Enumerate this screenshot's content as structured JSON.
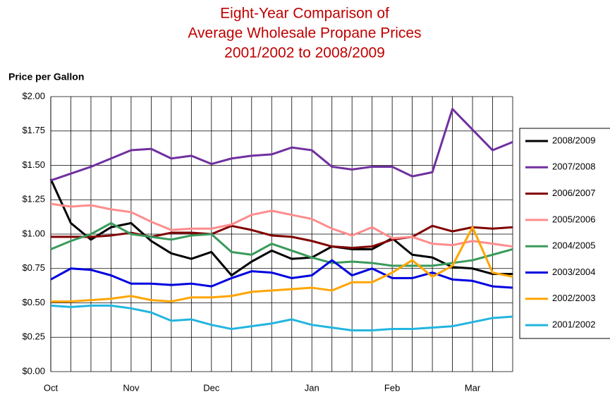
{
  "chart_data": {
    "type": "line",
    "title": [
      "Eight-Year Comparison of",
      "Average Wholesale Propane Prices",
      "2001/2002 to 2008/2009"
    ],
    "y_label": "Price per Gallon",
    "categories": [
      "Oct",
      null,
      null,
      null,
      "Nov",
      null,
      null,
      null,
      "Dec",
      null,
      null,
      null,
      null,
      "Jan",
      null,
      null,
      null,
      "Feb",
      null,
      null,
      null,
      "Mar",
      null,
      null
    ],
    "ylim": [
      0,
      2
    ],
    "yticks": [
      {
        "value": 0,
        "label": "$0.00"
      },
      {
        "value": 0.25,
        "label": "$0.25"
      },
      {
        "value": 0.5,
        "label": "$0.50"
      },
      {
        "value": 0.75,
        "label": "$0.75"
      },
      {
        "value": 1,
        "label": "$1.00"
      },
      {
        "value": 1.25,
        "label": "$1.25"
      },
      {
        "value": 1.5,
        "label": "$1.50"
      },
      {
        "value": 1.75,
        "label": "$1.75"
      },
      {
        "value": 2,
        "label": "$2.00"
      }
    ],
    "grid": true,
    "legend": "right",
    "series": [
      {
        "name": "2008/2009",
        "color": "#000000",
        "values": [
          1.4,
          1.08,
          0.96,
          1.05,
          1.08,
          0.95,
          0.86,
          0.82,
          0.87,
          0.7,
          0.8,
          0.88,
          0.82,
          0.83,
          0.91,
          0.89,
          0.89,
          0.97,
          0.85,
          0.83,
          0.76,
          0.75,
          0.71,
          0.71
        ]
      },
      {
        "name": "2007/2008",
        "color": "#7030a0",
        "values": [
          1.39,
          1.44,
          1.49,
          1.55,
          1.61,
          1.62,
          1.55,
          1.57,
          1.51,
          1.55,
          1.57,
          1.58,
          1.63,
          1.61,
          1.49,
          1.47,
          1.49,
          1.49,
          1.42,
          1.45,
          1.91,
          1.76,
          1.61,
          1.67
        ]
      },
      {
        "name": "2006/2007",
        "color": "#800000",
        "values": [
          0.98,
          0.98,
          0.98,
          0.99,
          1.01,
          0.98,
          1.01,
          1.01,
          1.0,
          1.06,
          1.03,
          0.99,
          0.98,
          0.95,
          0.91,
          0.9,
          0.91,
          0.96,
          0.98,
          1.06,
          1.02,
          1.05,
          1.04,
          1.05
        ]
      },
      {
        "name": "2005/2006",
        "color": "#ff8c8c",
        "values": [
          1.22,
          1.2,
          1.21,
          1.18,
          1.16,
          1.09,
          1.03,
          1.04,
          1.04,
          1.07,
          1.14,
          1.17,
          1.14,
          1.11,
          1.04,
          0.99,
          1.05,
          0.97,
          0.98,
          0.93,
          0.92,
          0.95,
          0.93,
          0.91
        ]
      },
      {
        "name": "2004/2005",
        "color": "#3a9a5c",
        "values": [
          0.89,
          0.95,
          1.0,
          1.08,
          1.0,
          0.98,
          0.96,
          0.99,
          1.0,
          0.87,
          0.85,
          0.93,
          0.88,
          0.83,
          0.79,
          0.8,
          0.79,
          0.77,
          0.77,
          0.77,
          0.79,
          0.81,
          0.85,
          0.89
        ]
      },
      {
        "name": "2003/2004",
        "color": "#0000e0",
        "values": [
          0.67,
          0.75,
          0.74,
          0.7,
          0.64,
          0.64,
          0.63,
          0.64,
          0.62,
          0.68,
          0.73,
          0.72,
          0.68,
          0.7,
          0.81,
          0.7,
          0.75,
          0.68,
          0.68,
          0.72,
          0.67,
          0.66,
          0.62,
          0.61
        ]
      },
      {
        "name": "2002/2003",
        "color": "#ffa500",
        "values": [
          0.51,
          0.51,
          0.52,
          0.53,
          0.55,
          0.52,
          0.51,
          0.54,
          0.54,
          0.55,
          0.58,
          0.59,
          0.6,
          0.61,
          0.59,
          0.65,
          0.65,
          0.72,
          0.81,
          0.69,
          0.77,
          1.05,
          0.72,
          0.69
        ]
      },
      {
        "name": "2001/2002",
        "color": "#22b5e0",
        "values": [
          0.48,
          0.47,
          0.48,
          0.48,
          0.46,
          0.43,
          0.37,
          0.38,
          0.34,
          0.31,
          0.33,
          0.35,
          0.38,
          0.34,
          0.32,
          0.3,
          0.3,
          0.31,
          0.31,
          0.32,
          0.33,
          0.36,
          0.39,
          0.4
        ]
      }
    ]
  }
}
